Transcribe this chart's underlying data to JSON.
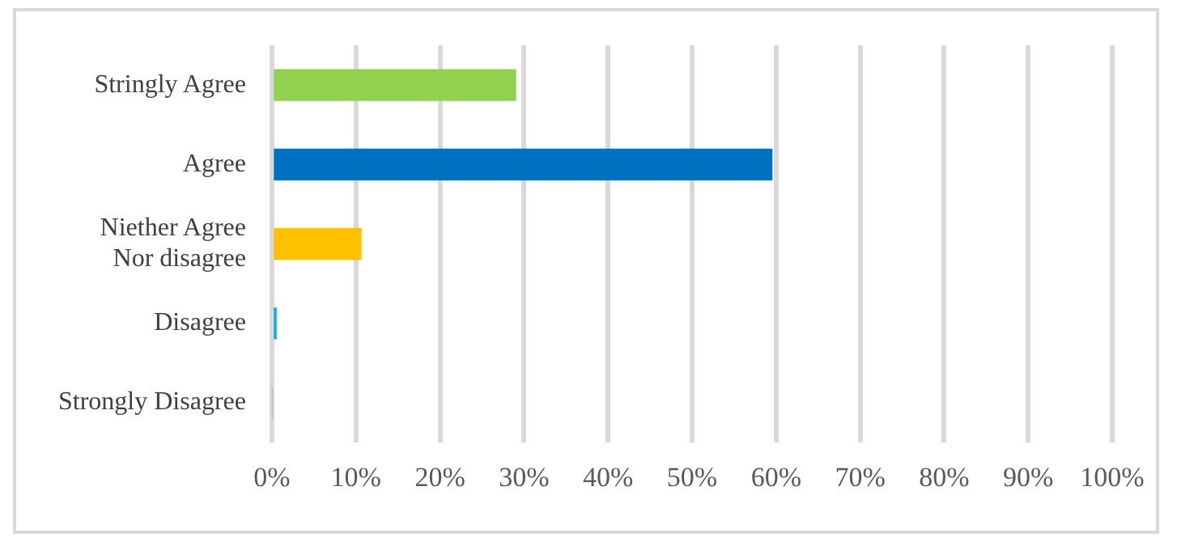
{
  "chart_data": {
    "type": "bar",
    "orientation": "horizontal",
    "categories": [
      "Stringly Agree",
      "Agree",
      "Niether Agree Nor disagree",
      "Disagree",
      "Strongly Disagree"
    ],
    "values": [
      29,
      59.5,
      10.6,
      0.5,
      0
    ],
    "colors": [
      "#92d050",
      "#0070c0",
      "#ffc000",
      "#00b0f0",
      "#a5a5a5"
    ],
    "xlim": [
      0,
      100
    ],
    "xticks": [
      {
        "value": 0,
        "label": "0%"
      },
      {
        "value": 10,
        "label": "10%"
      },
      {
        "value": 20,
        "label": "20%"
      },
      {
        "value": 30,
        "label": "30%"
      },
      {
        "value": 40,
        "label": "40%"
      },
      {
        "value": 50,
        "label": "50%"
      },
      {
        "value": 60,
        "label": "60%"
      },
      {
        "value": 70,
        "label": "70%"
      },
      {
        "value": 80,
        "label": "80%"
      },
      {
        "value": 90,
        "label": "90%"
      },
      {
        "value": 100,
        "label": "100%"
      }
    ],
    "grid": "x",
    "legend": false
  }
}
